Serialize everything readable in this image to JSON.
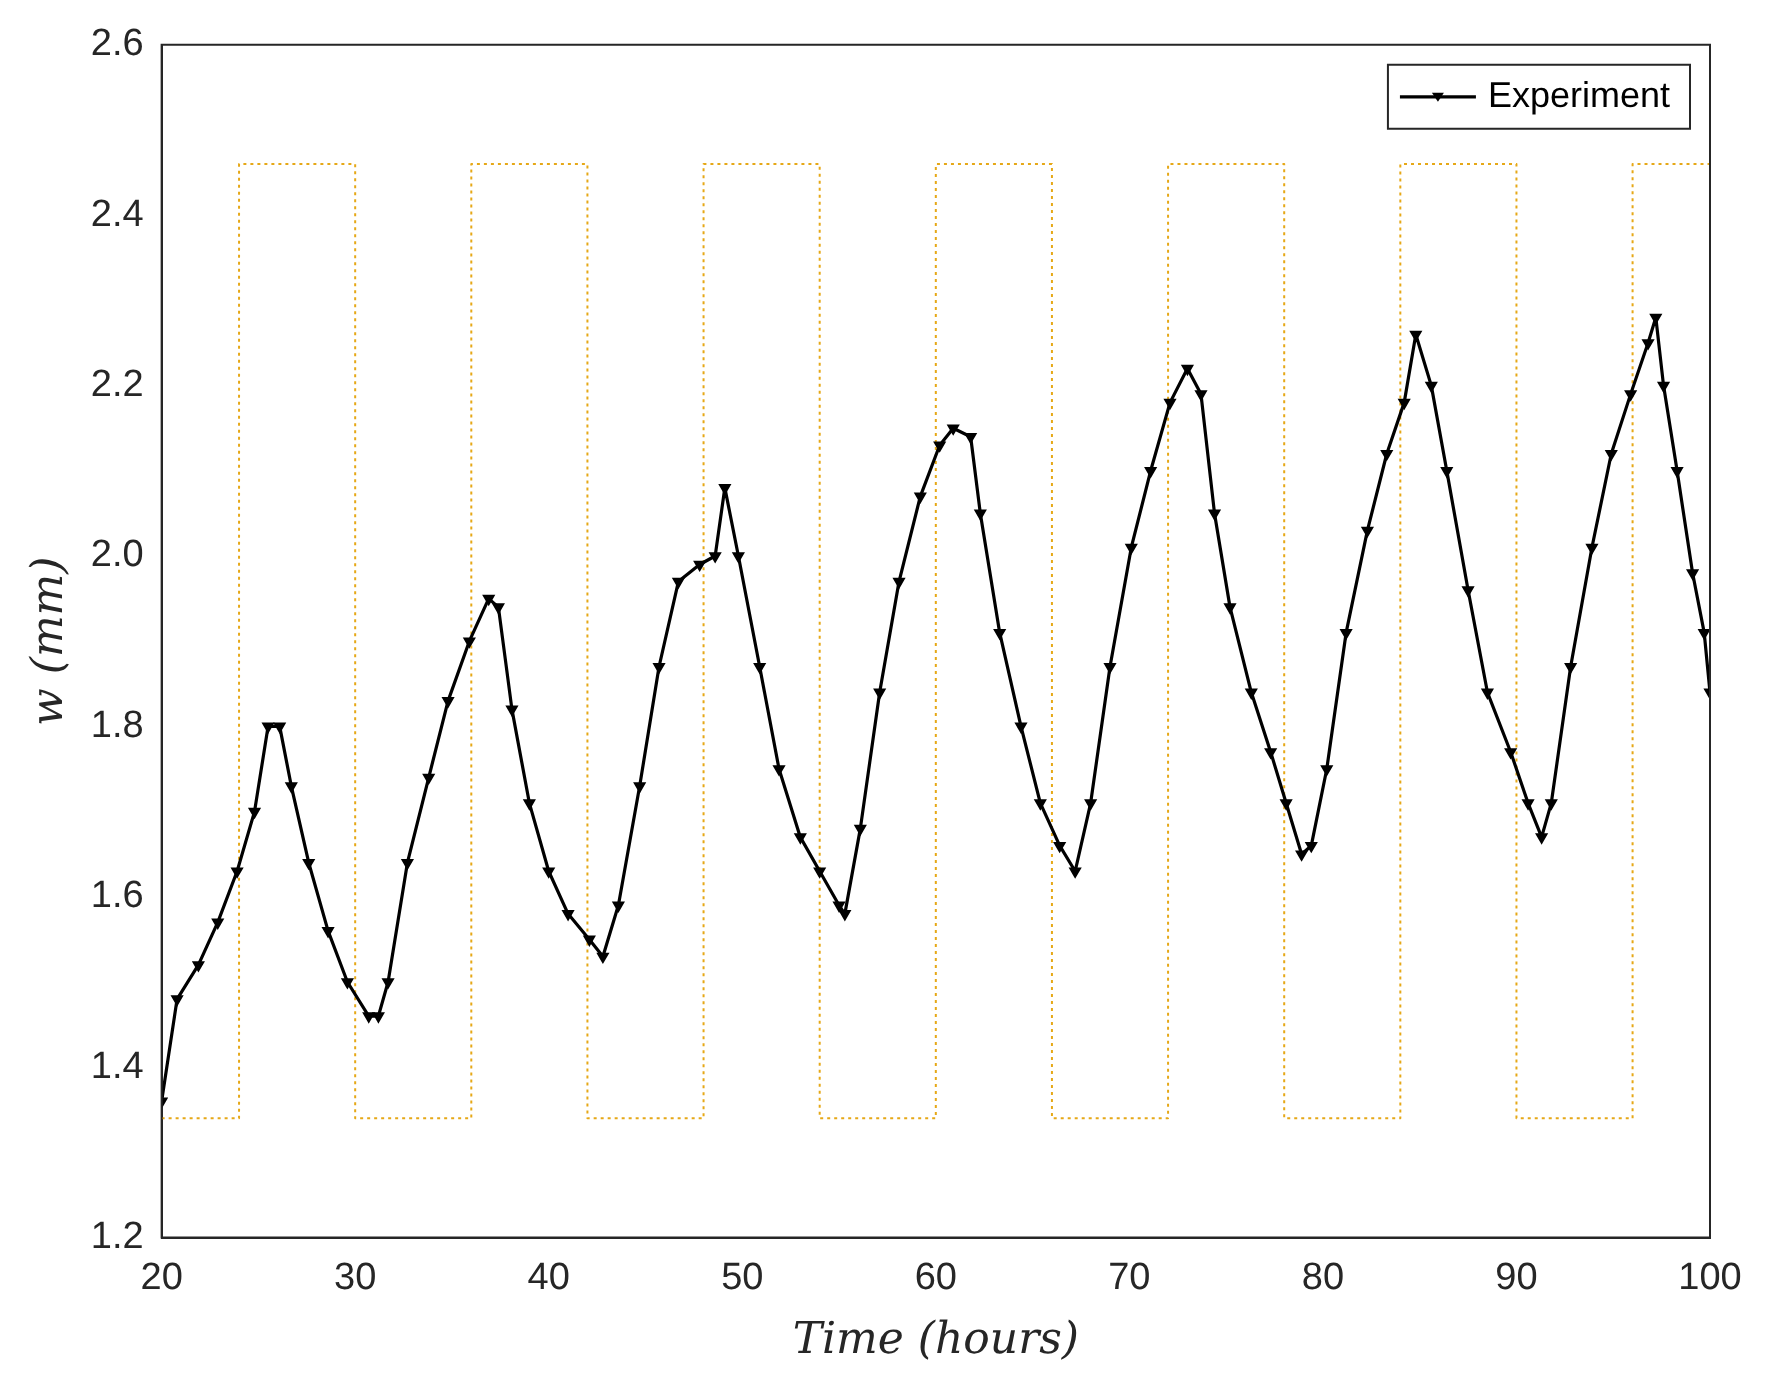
{
  "chart_data": {
    "type": "line",
    "xlabel": "Time (hours)",
    "ylabel": "w (mm)",
    "xlim": [
      20,
      100
    ],
    "xticks": [
      20,
      30,
      40,
      50,
      60,
      70,
      80,
      90,
      100
    ],
    "ylim": [
      1.2,
      2.6
    ],
    "yticks": [
      1.2,
      1.4,
      1.6,
      1.8,
      {
        "value": 2,
        "label": "2.0"
      },
      2.2,
      2.4,
      2.6
    ],
    "grid": false,
    "legend": "top right",
    "series": [
      {
        "name": "Experiment",
        "color": "#000000",
        "marker": "triangle",
        "line_style": "solid",
        "x": [
          20.0,
          20.8,
          21.9,
          22.9,
          23.9,
          24.8,
          25.5,
          26.1,
          26.7,
          27.6,
          28.6,
          29.6,
          30.7,
          31.2,
          31.7,
          32.7,
          33.8,
          34.8,
          35.9,
          36.9,
          37.4,
          38.1,
          39.0,
          40.0,
          41.0,
          42.1,
          42.8,
          43.6,
          44.7,
          45.7,
          46.7,
          47.8,
          48.6,
          49.1,
          49.8,
          50.9,
          51.9,
          53.0,
          54.0,
          55.0,
          55.3,
          56.1,
          57.1,
          58.1,
          59.2,
          60.2,
          60.9,
          61.8,
          62.3,
          63.3,
          64.4,
          65.4,
          66.4,
          67.2,
          68.0,
          69.0,
          70.1,
          71.1,
          72.1,
          73.0,
          73.7,
          74.4,
          75.2,
          76.3,
          77.3,
          78.1,
          78.9,
          79.4,
          80.2,
          81.2,
          82.3,
          83.3,
          84.2,
          84.8,
          85.6,
          86.4,
          87.5,
          88.5,
          89.7,
          90.6,
          91.3,
          91.8,
          92.8,
          93.9,
          94.9,
          95.9,
          96.8,
          97.2,
          97.6,
          98.3,
          99.1,
          99.7,
          100.0
        ],
        "values": [
          1.36,
          1.48,
          1.52,
          1.57,
          1.63,
          1.7,
          1.8,
          1.8,
          1.73,
          1.64,
          1.56,
          1.5,
          1.46,
          1.46,
          1.5,
          1.64,
          1.74,
          1.83,
          1.9,
          1.95,
          1.94,
          1.82,
          1.71,
          1.63,
          1.58,
          1.55,
          1.53,
          1.59,
          1.73,
          1.87,
          1.97,
          1.99,
          2.0,
          2.08,
          2.0,
          1.87,
          1.75,
          1.67,
          1.63,
          1.59,
          1.58,
          1.68,
          1.84,
          1.97,
          2.07,
          2.13,
          2.15,
          2.14,
          2.05,
          1.91,
          1.8,
          1.71,
          1.66,
          1.63,
          1.71,
          1.87,
          2.01,
          2.1,
          2.18,
          2.22,
          2.19,
          2.05,
          1.94,
          1.84,
          1.77,
          1.71,
          1.65,
          1.66,
          1.75,
          1.91,
          2.03,
          2.12,
          2.18,
          2.26,
          2.2,
          2.1,
          1.96,
          1.84,
          1.77,
          1.71,
          1.67,
          1.71,
          1.87,
          2.01,
          2.12,
          2.19,
          2.25,
          2.28,
          2.2,
          2.1,
          1.98,
          1.91,
          1.84
        ]
      },
      {
        "type": "step",
        "color": "#e6a817",
        "marker": "none",
        "line_style": "dotted",
        "x": [
          20,
          24,
          30,
          36,
          42,
          48,
          54,
          60,
          66,
          72,
          78,
          84,
          90,
          96,
          100
        ],
        "values": [
          1.34,
          2.46,
          1.34,
          2.46,
          1.34,
          2.46,
          1.34,
          2.46,
          1.34,
          2.46,
          1.34,
          2.46,
          1.34,
          2.46,
          2.46
        ]
      }
    ]
  }
}
